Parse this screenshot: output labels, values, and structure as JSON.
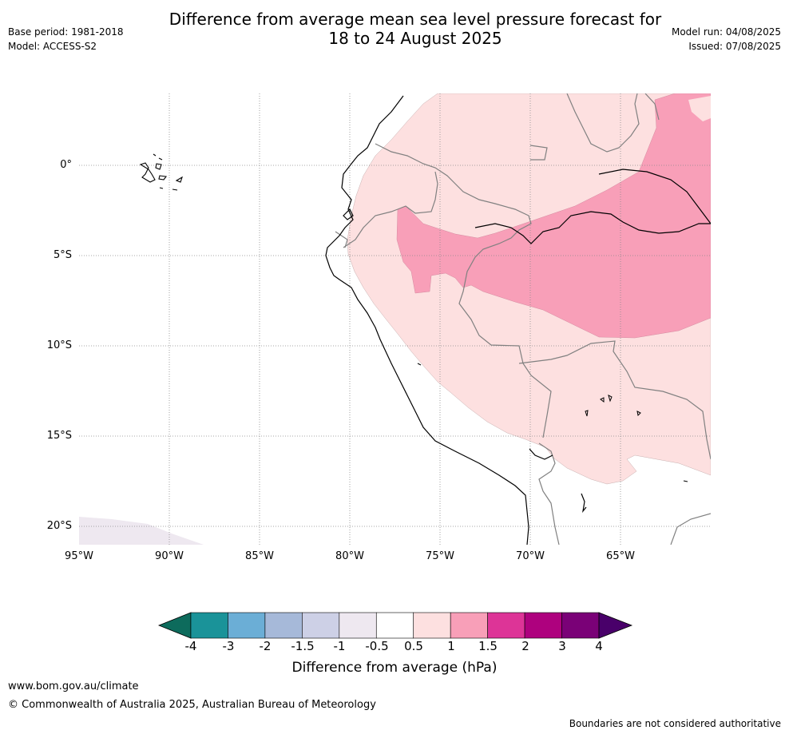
{
  "title": {
    "line1": "Difference from average mean sea level pressure forecast for",
    "line2": "18 to 24 August 2025"
  },
  "meta": {
    "base_period": "Base period: 1981-2018",
    "model": "Model: ACCESS-S2",
    "model_run": "Model run: 04/08/2025",
    "issued": "Issued: 07/08/2025"
  },
  "map": {
    "lat_labels": [
      "0°",
      "5°S",
      "10°S",
      "15°S",
      "20°S"
    ],
    "lon_labels": [
      "95°W",
      "90°W",
      "85°W",
      "80°W",
      "75°W",
      "70°W",
      "65°W"
    ]
  },
  "colorbar": {
    "title": "Difference from average (hPa)",
    "tick_labels": [
      "-4",
      "-3",
      "-2",
      "-1.5",
      "-1",
      "-0.5",
      "0.5",
      "1",
      "1.5",
      "2",
      "3",
      "4"
    ],
    "colors": [
      "#1a9399",
      "#6baed6",
      "#a6b9d9",
      "#cdd0e6",
      "#eee8f0",
      "#ffffff",
      "#fde0e0",
      "#f89fb8",
      "#dd3497",
      "#ae017e",
      "#7a0177"
    ],
    "under_color": "#0d6b5c",
    "over_color": "#49006a"
  },
  "footer": {
    "url": "www.bom.gov.au/climate",
    "copyright": "© Commonwealth of Australia 2025, Australian Bureau of Meteorology",
    "disclaimer": "Boundaries are not considered authoritative"
  }
}
